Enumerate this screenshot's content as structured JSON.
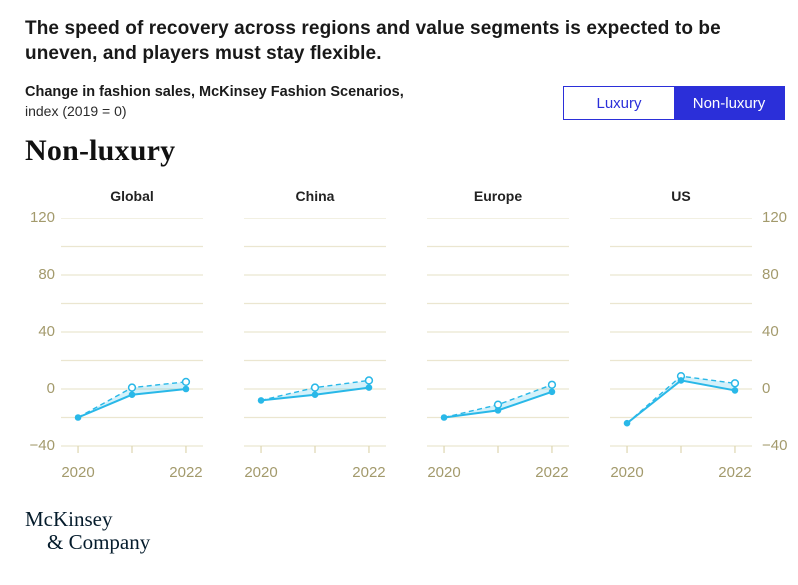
{
  "header": {
    "title": "The speed of recovery across regions and value segments is expected to be uneven, and players must stay flexible."
  },
  "subtitle": {
    "line1": "Change in fashion sales, McKinsey Fashion Scenarios,",
    "line2": "index (2019 = 0)"
  },
  "toggle": {
    "options": [
      {
        "label": "Luxury",
        "selected": false
      },
      {
        "label": "Non-luxury",
        "selected": true
      }
    ]
  },
  "section_heading": "Non-luxury",
  "colors": {
    "accent_blue": "#2b2fd9",
    "line_cyan": "#29b8e8",
    "band_fill": "#29b8e8",
    "band_opacity": 0.2,
    "grid": "#ebe6d0",
    "tick": "#ddd6b0",
    "axis_label": "#a39a6c"
  },
  "chart_data": {
    "type": "line",
    "x": [
      2020,
      2021,
      2022
    ],
    "x_labels": [
      {
        "i": 0,
        "label": "2020"
      },
      {
        "i": 2,
        "label": "2022"
      }
    ],
    "ylim": [
      -40,
      120
    ],
    "grid_interval": 20,
    "y_ticks": [
      {
        "v": 120,
        "label": "120"
      },
      {
        "v": 80,
        "label": "80"
      },
      {
        "v": 40,
        "label": "40"
      },
      {
        "v": 0,
        "label": "0"
      },
      {
        "v": -40,
        "label": "−40"
      }
    ],
    "legend": "none",
    "panels": [
      {
        "title": "Global",
        "series": [
          {
            "name": "solid-line",
            "style": "solid",
            "values": [
              -20,
              -4,
              0
            ]
          },
          {
            "name": "dashed-line",
            "style": "dashed",
            "values": [
              -20,
              1,
              5
            ]
          }
        ]
      },
      {
        "title": "China",
        "series": [
          {
            "name": "solid-line",
            "style": "solid",
            "values": [
              -8,
              -4,
              1
            ]
          },
          {
            "name": "dashed-line",
            "style": "dashed",
            "values": [
              -8,
              1,
              6
            ]
          }
        ]
      },
      {
        "title": "Europe",
        "series": [
          {
            "name": "solid-line",
            "style": "solid",
            "values": [
              -20,
              -15,
              -2
            ]
          },
          {
            "name": "dashed-line",
            "style": "dashed",
            "values": [
              -20,
              -11,
              3
            ]
          }
        ]
      },
      {
        "title": "US",
        "series": [
          {
            "name": "solid-line",
            "style": "solid",
            "values": [
              -24,
              6,
              -1
            ]
          },
          {
            "name": "dashed-line",
            "style": "dashed",
            "values": [
              -24,
              9,
              4
            ]
          }
        ]
      }
    ]
  },
  "logo": {
    "line1": "McKinsey",
    "line2": "& Company"
  }
}
